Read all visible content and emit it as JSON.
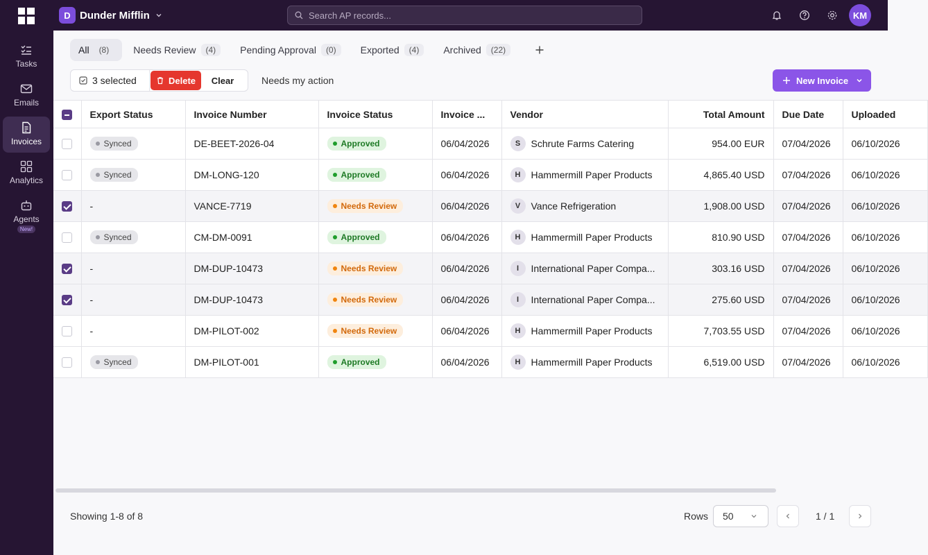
{
  "org": {
    "badge": "D",
    "name": "Dunder Mifflin"
  },
  "search": {
    "placeholder": "Search AP records..."
  },
  "user": {
    "initials": "KM"
  },
  "sidebar": {
    "items": [
      {
        "label": "Tasks",
        "icon": "tasks-icon"
      },
      {
        "label": "Emails",
        "icon": "mail-icon"
      },
      {
        "label": "Invoices",
        "icon": "document-icon"
      },
      {
        "label": "Analytics",
        "icon": "grid-icon"
      },
      {
        "label": "Agents",
        "icon": "bot-icon",
        "tag": "New!"
      }
    ]
  },
  "tabs": [
    {
      "label": "All",
      "count": "(8)"
    },
    {
      "label": "Needs Review",
      "count": "(4)"
    },
    {
      "label": "Pending Approval",
      "count": "(0)"
    },
    {
      "label": "Exported",
      "count": "(4)"
    },
    {
      "label": "Archived",
      "count": "(22)"
    }
  ],
  "toolbar": {
    "selected": "3 selected",
    "delete": "Delete",
    "clear": "Clear",
    "needs_my_action": "Needs my action",
    "new_invoice": "New Invoice"
  },
  "table": {
    "columns": [
      "Export Status",
      "Invoice Number",
      "Invoice Status",
      "Invoice ...",
      "Vendor",
      "Total Amount",
      "Due Date",
      "Uploaded"
    ],
    "rows": [
      {
        "selected": false,
        "export": "Synced",
        "number": "DE-BEET-2026-04",
        "status": "Approved",
        "date": "06/04/2026",
        "vendor_initial": "S",
        "vendor": "Schrute Farms Catering",
        "amount": "954.00 EUR",
        "due": "07/04/2026",
        "uploaded": "06/10/2026"
      },
      {
        "selected": false,
        "export": "Synced",
        "number": "DM-LONG-120",
        "status": "Approved",
        "date": "06/04/2026",
        "vendor_initial": "H",
        "vendor": "Hammermill Paper Products",
        "amount": "4,865.40 USD",
        "due": "07/04/2026",
        "uploaded": "06/10/2026"
      },
      {
        "selected": true,
        "export": "-",
        "number": "VANCE-7719",
        "status": "Needs Review",
        "date": "06/04/2026",
        "vendor_initial": "V",
        "vendor": "Vance Refrigeration",
        "amount": "1,908.00 USD",
        "due": "07/04/2026",
        "uploaded": "06/10/2026"
      },
      {
        "selected": false,
        "export": "Synced",
        "number": "CM-DM-0091",
        "status": "Approved",
        "date": "06/04/2026",
        "vendor_initial": "H",
        "vendor": "Hammermill Paper Products",
        "amount": "810.90 USD",
        "due": "07/04/2026",
        "uploaded": "06/10/2026"
      },
      {
        "selected": true,
        "export": "-",
        "number": "DM-DUP-10473",
        "status": "Needs Review",
        "date": "06/04/2026",
        "vendor_initial": "I",
        "vendor": "International Paper Compa...",
        "amount": "303.16 USD",
        "due": "07/04/2026",
        "uploaded": "06/10/2026"
      },
      {
        "selected": true,
        "export": "-",
        "number": "DM-DUP-10473",
        "status": "Needs Review",
        "date": "06/04/2026",
        "vendor_initial": "I",
        "vendor": "International Paper Compa...",
        "amount": "275.60 USD",
        "due": "07/04/2026",
        "uploaded": "06/10/2026"
      },
      {
        "selected": false,
        "export": "-",
        "number": "DM-PILOT-002",
        "status": "Needs Review",
        "date": "06/04/2026",
        "vendor_initial": "H",
        "vendor": "Hammermill Paper Products",
        "amount": "7,703.55 USD",
        "due": "07/04/2026",
        "uploaded": "06/10/2026"
      },
      {
        "selected": false,
        "export": "Synced",
        "number": "DM-PILOT-001",
        "status": "Approved",
        "date": "06/04/2026",
        "vendor_initial": "H",
        "vendor": "Hammermill Paper Products",
        "amount": "6,519.00 USD",
        "due": "07/04/2026",
        "uploaded": "06/10/2026"
      }
    ]
  },
  "footer": {
    "showing": "Showing 1-8 of 8",
    "rows_label": "Rows",
    "rows_value": "50",
    "page": "1 / 1"
  },
  "colors": {
    "sidebar_bg": "#261533",
    "accent": "#8b55e8",
    "danger": "#e5372e",
    "approved": "#1e7a25",
    "review": "#d2690b"
  }
}
